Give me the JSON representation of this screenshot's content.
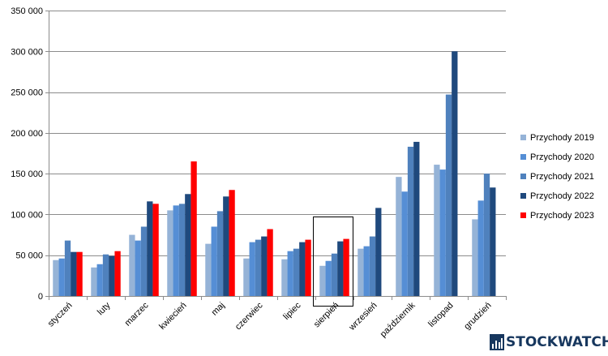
{
  "chart_data": {
    "type": "bar",
    "categories": [
      "styczeń",
      "luty",
      "marzec",
      "kwiecień",
      "maj",
      "czerwiec",
      "lipiec",
      "sierpień",
      "wrzesień",
      "październik",
      "listopad",
      "grudzień"
    ],
    "series": [
      {
        "name": "Przychody 2019",
        "color": "#95b3d7",
        "values": [
          44000,
          35000,
          75000,
          105000,
          64000,
          46000,
          45000,
          37000,
          58000,
          146000,
          161000,
          94000
        ]
      },
      {
        "name": "Przychody 2020",
        "color": "#558ed5",
        "values": [
          46000,
          39000,
          68000,
          111000,
          85000,
          66000,
          55000,
          43000,
          61000,
          128000,
          155000,
          117000
        ]
      },
      {
        "name": "Przychody 2021",
        "color": "#4f81bd",
        "values": [
          68000,
          51000,
          85000,
          113000,
          104000,
          69000,
          58000,
          52000,
          73000,
          183000,
          247000,
          150000
        ]
      },
      {
        "name": "Przychody 2022",
        "color": "#1f497d",
        "values": [
          54000,
          49000,
          116000,
          125000,
          122000,
          73000,
          66000,
          67000,
          108000,
          189000,
          300000,
          133000
        ]
      },
      {
        "name": "Przychody 2023",
        "color": "#ff0000",
        "values": [
          54000,
          55000,
          113000,
          165000,
          130000,
          82000,
          69000,
          70000,
          null,
          null,
          null,
          null
        ]
      }
    ],
    "ylim": [
      0,
      350000
    ],
    "y_ticks": [
      "0",
      "50 000",
      "100 000",
      "150 000",
      "200 000",
      "250 000",
      "300 000",
      "350 000"
    ],
    "y_tick_values": [
      0,
      50000,
      100000,
      150000,
      200000,
      250000,
      300000,
      350000
    ],
    "grid": true,
    "legend_position": "right",
    "highlighted_category": "sierpień",
    "title": "",
    "xlabel": "",
    "ylabel": ""
  },
  "brand": {
    "name": "STOCKWATCH",
    "color": "#17375e"
  }
}
